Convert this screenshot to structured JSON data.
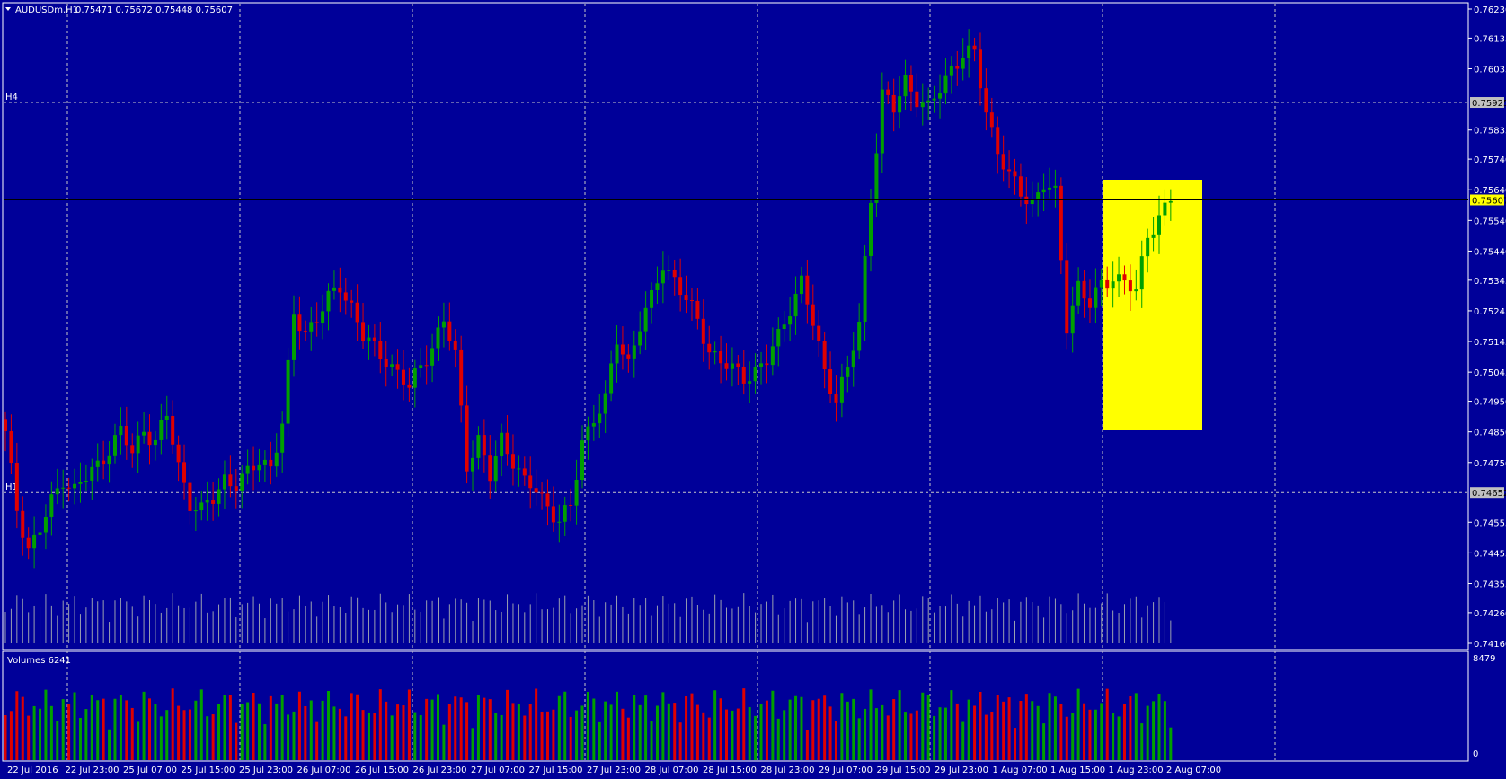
{
  "header": {
    "symbol_title": "AUDUSDm,H1",
    "ohlc": "0.75471 0.75672 0.75448 0.75607"
  },
  "volume_panel": {
    "title": "Volumes 6241",
    "max_label": "8479",
    "min_label": "0"
  },
  "levels": [
    {
      "label": "H4",
      "price": 0.75925,
      "price_label": "0.75925"
    },
    {
      "label": "H1",
      "price": 0.74652,
      "price_label": "0.74652"
    }
  ],
  "current_price": {
    "price": 0.75607,
    "price_label": "0.75607"
  },
  "colors": {
    "background": "#000099",
    "bull": "#00a000",
    "bear": "#e00000",
    "grid": "#c8c8c8",
    "axis": "#ffffff",
    "highlight": "#ffff00"
  },
  "chart_data": {
    "type": "candlestick",
    "symbol": "AUDUSDm",
    "timeframe": "H1",
    "y_ticks": [
      "0.76230",
      "0.76135",
      "0.76035",
      "0.75835",
      "0.75740",
      "0.75640",
      "0.75540",
      "0.75440",
      "0.75345",
      "0.75245",
      "0.75145",
      "0.75045",
      "0.74950",
      "0.74850",
      "0.74750",
      "0.74555",
      "0.74455",
      "0.74355",
      "0.74260",
      "0.74160"
    ],
    "ylim": [
      0.7416,
      0.7623
    ],
    "x_ticks": [
      "22 Jul 2016",
      "22 Jul 23:00",
      "25 Jul 07:00",
      "25 Jul 15:00",
      "25 Jul 23:00",
      "26 Jul 07:00",
      "26 Jul 15:00",
      "26 Jul 23:00",
      "27 Jul 07:00",
      "27 Jul 15:00",
      "27 Jul 23:00",
      "28 Jul 07:00",
      "28 Jul 15:00",
      "28 Jul 23:00",
      "29 Jul 07:00",
      "29 Jul 15:00",
      "29 Jul 23:00",
      "1 Aug 07:00",
      "1 Aug 15:00",
      "1 Aug 23:00",
      "2 Aug 07:00"
    ],
    "bar_count": 203,
    "anchors": [
      [
        0,
        0.7484
      ],
      [
        2,
        0.746
      ],
      [
        4,
        0.7447
      ],
      [
        6,
        0.7453
      ],
      [
        8,
        0.7462
      ],
      [
        10,
        0.747
      ],
      [
        12,
        0.7466
      ],
      [
        14,
        0.747
      ],
      [
        16,
        0.7474
      ],
      [
        18,
        0.748
      ],
      [
        20,
        0.7485
      ],
      [
        22,
        0.7478
      ],
      [
        24,
        0.7486
      ],
      [
        26,
        0.7482
      ],
      [
        28,
        0.749
      ],
      [
        30,
        0.7474
      ],
      [
        32,
        0.7462
      ],
      [
        34,
        0.7459
      ],
      [
        36,
        0.7463
      ],
      [
        38,
        0.747
      ],
      [
        40,
        0.7468
      ],
      [
        42,
        0.7471
      ],
      [
        44,
        0.7476
      ],
      [
        46,
        0.7474
      ],
      [
        48,
        0.7487
      ],
      [
        50,
        0.7523
      ],
      [
        52,
        0.7518
      ],
      [
        54,
        0.7522
      ],
      [
        56,
        0.7528
      ],
      [
        58,
        0.7533
      ],
      [
        60,
        0.7526
      ],
      [
        62,
        0.7516
      ],
      [
        64,
        0.7512
      ],
      [
        66,
        0.7509
      ],
      [
        68,
        0.7504
      ],
      [
        70,
        0.7499
      ],
      [
        72,
        0.7507
      ],
      [
        74,
        0.7513
      ],
      [
        76,
        0.7521
      ],
      [
        78,
        0.751
      ],
      [
        80,
        0.7475
      ],
      [
        82,
        0.7482
      ],
      [
        84,
        0.747
      ],
      [
        86,
        0.7483
      ],
      [
        88,
        0.7476
      ],
      [
        90,
        0.7468
      ],
      [
        92,
        0.7466
      ],
      [
        94,
        0.7461
      ],
      [
        96,
        0.7456
      ],
      [
        98,
        0.746
      ],
      [
        100,
        0.7482
      ],
      [
        102,
        0.749
      ],
      [
        104,
        0.7495
      ],
      [
        106,
        0.7515
      ],
      [
        108,
        0.7508
      ],
      [
        110,
        0.752
      ],
      [
        112,
        0.7528
      ],
      [
        114,
        0.754
      ],
      [
        116,
        0.7535
      ],
      [
        118,
        0.7528
      ],
      [
        120,
        0.7521
      ],
      [
        122,
        0.7512
      ],
      [
        124,
        0.7508
      ],
      [
        126,
        0.7505
      ],
      [
        128,
        0.7503
      ],
      [
        130,
        0.7505
      ],
      [
        132,
        0.7508
      ],
      [
        134,
        0.7516
      ],
      [
        136,
        0.7526
      ],
      [
        138,
        0.7534
      ],
      [
        140,
        0.752
      ],
      [
        142,
        0.7505
      ],
      [
        144,
        0.7496
      ],
      [
        146,
        0.7505
      ],
      [
        148,
        0.752
      ],
      [
        150,
        0.7562
      ],
      [
        152,
        0.7595
      ],
      [
        154,
        0.759
      ],
      [
        156,
        0.76
      ],
      [
        158,
        0.7594
      ],
      [
        160,
        0.759
      ],
      [
        162,
        0.7597
      ],
      [
        164,
        0.7604
      ],
      [
        166,
        0.7608
      ],
      [
        168,
        0.7608
      ],
      [
        170,
        0.759
      ],
      [
        172,
        0.7577
      ],
      [
        174,
        0.7568
      ],
      [
        176,
        0.7563
      ],
      [
        178,
        0.756
      ],
      [
        180,
        0.7566
      ],
      [
        182,
        0.7562
      ],
      [
        184,
        0.752
      ],
      [
        186,
        0.7533
      ],
      [
        188,
        0.7526
      ],
      [
        190,
        0.7533
      ],
      [
        192,
        0.7536
      ],
      [
        194,
        0.7534
      ],
      [
        196,
        0.753
      ],
      [
        198,
        0.755
      ],
      [
        200,
        0.7555
      ],
      [
        202,
        0.7561
      ]
    ],
    "volume_scale": [
      0,
      8479
    ]
  }
}
